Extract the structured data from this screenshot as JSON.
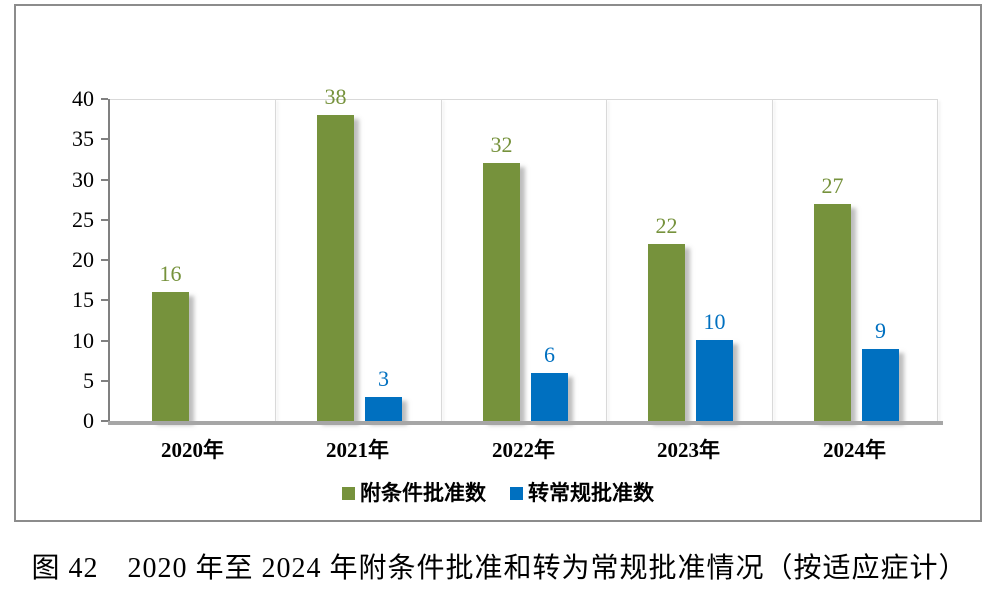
{
  "figure": {
    "caption": "图 42　2020 年至 2024 年附条件批准和转为常规批准情况（按适应症计）"
  },
  "chart_data": {
    "type": "bar",
    "title": "",
    "xlabel": "",
    "ylabel": "",
    "categories": [
      "2020年",
      "2021年",
      "2022年",
      "2023年",
      "2024年"
    ],
    "series": [
      {
        "name": "附条件批准数",
        "color": "#76923C",
        "label_color": "#76923C",
        "values": [
          16,
          38,
          32,
          22,
          27
        ]
      },
      {
        "name": "转常规批准数",
        "color": "#0070C0",
        "label_color": "#0070C0",
        "values": [
          0,
          3,
          6,
          10,
          9
        ]
      }
    ],
    "ylim": [
      0,
      40
    ],
    "yticks": [
      0,
      5,
      10,
      15,
      20,
      25,
      30,
      35,
      40
    ],
    "grid": "vertical-category-separators-only",
    "legend_position": "bottom",
    "data_labels": true,
    "zero_bars_hidden": true
  }
}
